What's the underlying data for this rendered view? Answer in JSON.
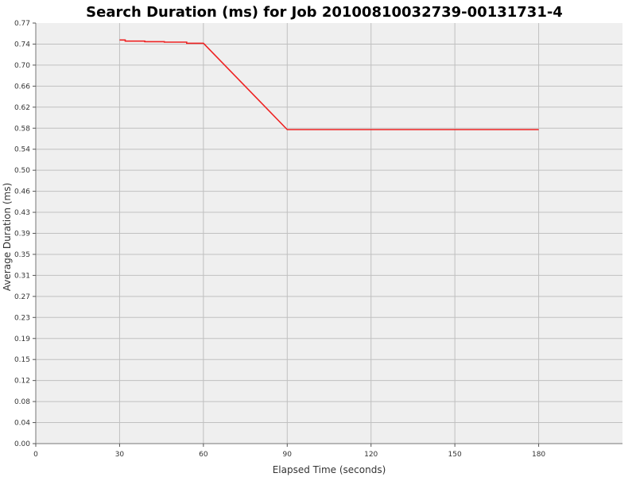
{
  "chart_data": {
    "type": "line",
    "title": "Search Duration (ms) for Job 20100810032739-00131731-4",
    "xlabel": "Elapsed Time (seconds)",
    "ylabel": "Average Duration (ms)",
    "xlim": [
      0,
      210
    ],
    "ylim": [
      0.0,
      0.77
    ],
    "x_ticks": [
      0,
      30,
      60,
      90,
      120,
      150,
      180
    ],
    "y_ticks": [
      "0.00",
      "0.04",
      "0.08",
      "0.12",
      "0.15",
      "0.19",
      "0.23",
      "0.27",
      "0.31",
      "0.35",
      "0.39",
      "0.43",
      "0.46",
      "0.50",
      "0.54",
      "0.58",
      "0.62",
      "0.66",
      "0.70",
      "0.74",
      "0.77"
    ],
    "grid": true,
    "colors": {
      "plot_background": "#efefef",
      "grid": "#c0c0c0",
      "series": "#ee2222"
    },
    "series": [
      {
        "color": "#ee2222",
        "x": [
          30,
          32,
          32,
          39,
          39,
          46,
          46,
          54,
          54,
          60,
          90,
          180
        ],
        "y": [
          0.739,
          0.739,
          0.737,
          0.737,
          0.736,
          0.736,
          0.735,
          0.735,
          0.733,
          0.733,
          0.575,
          0.575
        ]
      }
    ]
  }
}
